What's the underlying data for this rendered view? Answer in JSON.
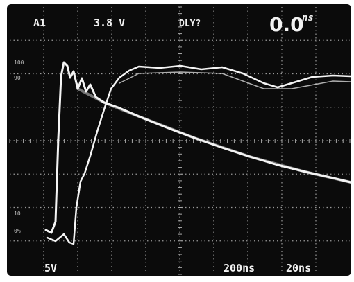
{
  "header": {
    "channel": "A1",
    "level": "3.8 V",
    "delay_label": "DLY?",
    "delay_value": "0.0",
    "delay_unit": "ns"
  },
  "graticule_labels": [
    "100",
    "90",
    "10",
    "0%"
  ],
  "footer": {
    "volts_per_div": "5V",
    "time_per_div": "200ns",
    "delay_per_div": "20ns"
  }
}
